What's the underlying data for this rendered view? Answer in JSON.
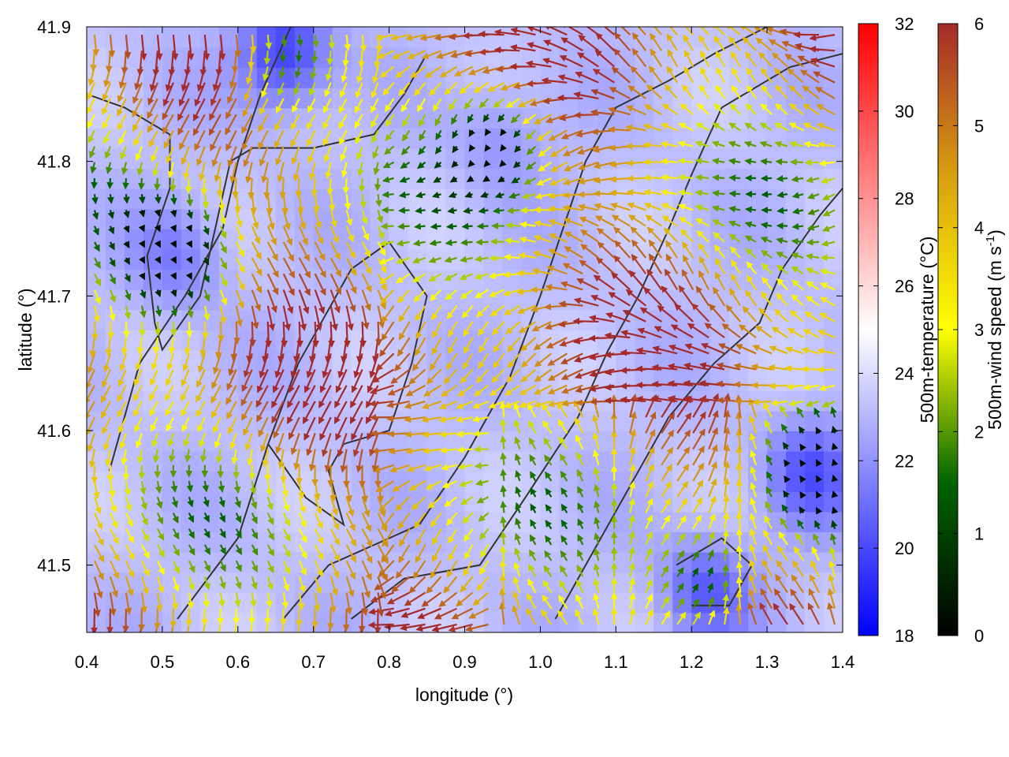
{
  "chart_data": {
    "type": "heatmap",
    "xlabel": "longitude (°)",
    "ylabel": "latitude (°)",
    "xlim": [
      0.4,
      1.4
    ],
    "ylim": [
      41.45,
      41.9
    ],
    "xticks": [
      0.4,
      0.5,
      0.6,
      0.7,
      0.8,
      0.9,
      1.0,
      1.1,
      1.2,
      1.3,
      1.4
    ],
    "xtick_labels": [
      "0.4",
      "0.5",
      "0.6",
      "0.7",
      "0.8",
      "0.9",
      "1.0",
      "1.1",
      "1.2",
      "1.3",
      "1.4"
    ],
    "yticks": [
      41.5,
      41.6,
      41.7,
      41.8,
      41.9
    ],
    "ytick_labels": [
      "41.5",
      "41.6",
      "41.7",
      "41.8",
      "41.9"
    ],
    "temperature_colorbar": {
      "label": "500m-temperature (°C)",
      "range": [
        18,
        32
      ],
      "ticks": [
        18,
        20,
        22,
        24,
        26,
        28,
        30,
        32
      ],
      "tick_labels": [
        "18",
        "20",
        "22",
        "24",
        "26",
        "28",
        "30",
        "32"
      ],
      "colors": [
        "#0000ff",
        "#ffffff",
        "#ff0000"
      ]
    },
    "wind_colorbar": {
      "label": "500m-wind speed (m s",
      "label_superscript": "-1",
      "label_suffix": ")",
      "range": [
        0,
        6
      ],
      "ticks": [
        0,
        1,
        2,
        3,
        4,
        5,
        6
      ],
      "tick_labels": [
        "0",
        "1",
        "2",
        "3",
        "4",
        "5",
        "6"
      ],
      "colors": [
        "#000000",
        "#006400",
        "#ffff00",
        "#d8a010",
        "#a52a2a"
      ]
    },
    "temperature_cold_centers": [
      {
        "lon": 0.66,
        "lat": 41.88,
        "temp": 19.5
      },
      {
        "lon": 0.52,
        "lat": 41.73,
        "temp": 21.5
      },
      {
        "lon": 1.22,
        "lat": 41.48,
        "temp": 20.5
      },
      {
        "lon": 1.36,
        "lat": 41.57,
        "temp": 20.5
      },
      {
        "lon": 0.95,
        "lat": 41.82,
        "temp": 22.0
      }
    ],
    "terrain_contours": [
      [
        [
          0.4,
          41.85
        ],
        [
          0.45,
          41.84
        ],
        [
          0.51,
          41.82
        ],
        [
          0.51,
          41.78
        ],
        [
          0.48,
          41.73
        ],
        [
          0.49,
          41.68
        ],
        [
          0.5,
          41.66
        ],
        [
          0.55,
          41.7
        ],
        [
          0.57,
          41.75
        ],
        [
          0.59,
          41.8
        ],
        [
          0.62,
          41.81
        ],
        [
          0.7,
          41.81
        ],
        [
          0.78,
          41.82
        ],
        [
          0.82,
          41.85
        ],
        [
          0.85,
          41.88
        ]
      ],
      [
        [
          0.43,
          41.57
        ],
        [
          0.47,
          41.65
        ],
        [
          0.53,
          41.7
        ],
        [
          0.58,
          41.75
        ],
        [
          0.6,
          41.8
        ],
        [
          0.63,
          41.85
        ],
        [
          0.67,
          41.9
        ]
      ],
      [
        [
          0.52,
          41.46
        ],
        [
          0.6,
          41.52
        ],
        [
          0.64,
          41.59
        ],
        [
          0.68,
          41.65
        ],
        [
          0.75,
          41.72
        ],
        [
          0.8,
          41.74
        ],
        [
          0.85,
          41.7
        ],
        [
          0.83,
          41.65
        ],
        [
          0.8,
          41.6
        ],
        [
          0.74,
          41.59
        ],
        [
          0.72,
          41.57
        ],
        [
          0.74,
          41.53
        ],
        [
          0.69,
          41.55
        ],
        [
          0.64,
          41.59
        ]
      ],
      [
        [
          0.66,
          41.46
        ],
        [
          0.72,
          41.5
        ],
        [
          0.84,
          41.53
        ],
        [
          0.9,
          41.58
        ],
        [
          0.96,
          41.64
        ],
        [
          1.0,
          41.7
        ],
        [
          1.03,
          41.75
        ],
        [
          1.06,
          41.8
        ],
        [
          1.1,
          41.84
        ],
        [
          1.17,
          41.86
        ],
        [
          1.23,
          41.88
        ],
        [
          1.3,
          41.9
        ]
      ],
      [
        [
          0.75,
          41.46
        ],
        [
          0.82,
          41.49
        ],
        [
          0.92,
          41.5
        ],
        [
          0.98,
          41.55
        ],
        [
          1.05,
          41.61
        ],
        [
          1.09,
          41.66
        ],
        [
          1.13,
          41.7
        ],
        [
          1.17,
          41.75
        ],
        [
          1.2,
          41.79
        ],
        [
          1.24,
          41.84
        ],
        [
          1.33,
          41.87
        ],
        [
          1.4,
          41.88
        ]
      ],
      [
        [
          1.02,
          41.46
        ],
        [
          1.07,
          41.51
        ],
        [
          1.12,
          41.56
        ],
        [
          1.17,
          41.61
        ],
        [
          1.23,
          41.65
        ],
        [
          1.29,
          41.68
        ],
        [
          1.32,
          41.72
        ],
        [
          1.37,
          41.76
        ],
        [
          1.4,
          41.78
        ]
      ],
      [
        [
          1.18,
          41.5
        ],
        [
          1.24,
          41.52
        ],
        [
          1.28,
          41.5
        ],
        [
          1.25,
          41.47
        ],
        [
          1.2,
          41.47
        ]
      ]
    ]
  }
}
